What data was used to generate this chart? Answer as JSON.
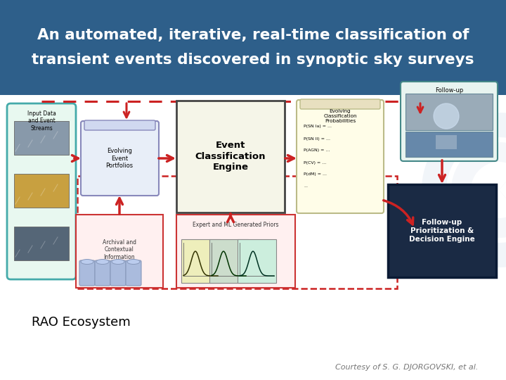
{
  "title_line1": "An automated, iterative, real-time classification of",
  "title_line2": "transient events discovered in synoptic sky surveys",
  "title_bg_color": "#2E5F8A",
  "title_text_color": "#FFFFFF",
  "slide_bg_color": "#FFFFFF",
  "bottom_left_text": "RAO Ecosystem",
  "bottom_right_text": "Courtesy of S. G. DJORGOVSKI, et al.",
  "bottom_left_color": "#000000",
  "bottom_right_color": "#777777",
  "watermark_color": "#C8D8E8"
}
